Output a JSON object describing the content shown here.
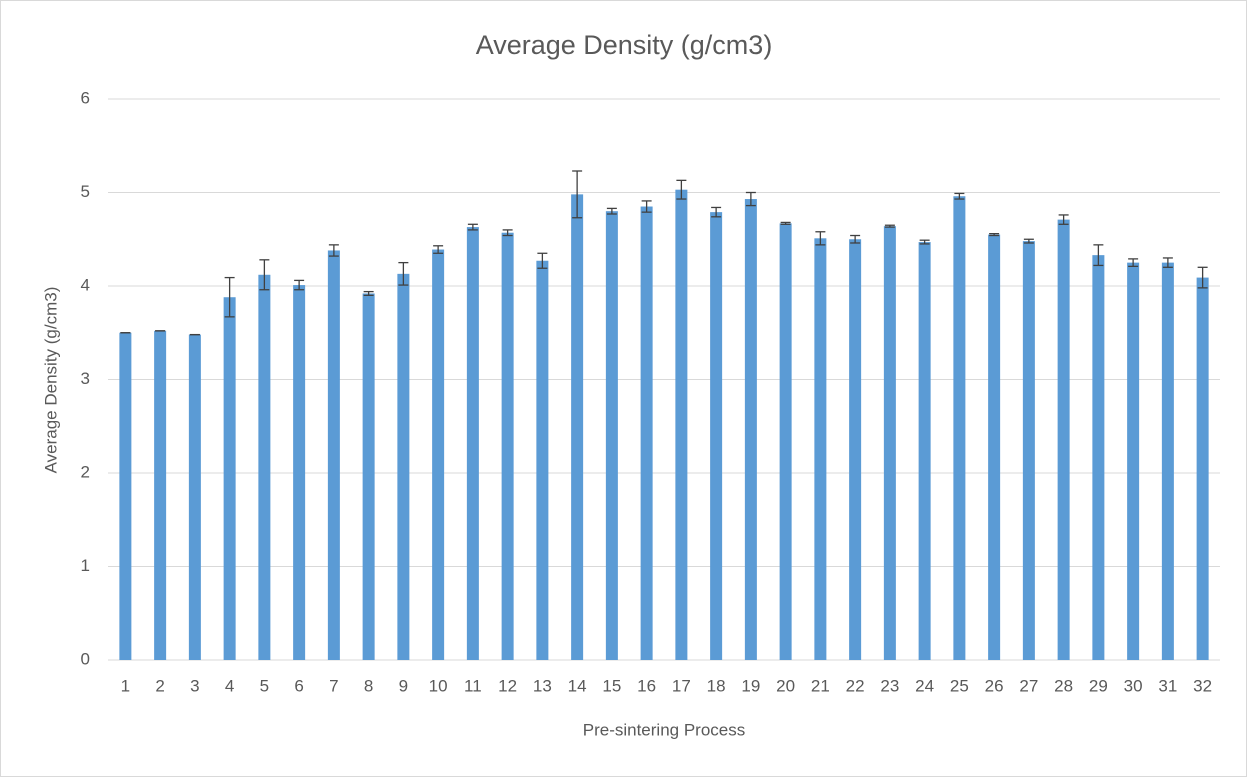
{
  "chart_data": {
    "type": "bar",
    "title": "Average Density (g/cm3)",
    "x_label": "Pre-sintering Process",
    "y_label": "Average Density (g/cm3)",
    "categories": [
      "1",
      "2",
      "3",
      "4",
      "5",
      "6",
      "7",
      "8",
      "9",
      "10",
      "11",
      "12",
      "13",
      "14",
      "15",
      "16",
      "17",
      "18",
      "19",
      "20",
      "21",
      "22",
      "23",
      "24",
      "25",
      "26",
      "27",
      "28",
      "29",
      "30",
      "31",
      "32"
    ],
    "values": [
      3.5,
      3.52,
      3.48,
      3.88,
      4.12,
      4.01,
      4.38,
      3.92,
      4.13,
      4.39,
      4.63,
      4.57,
      4.27,
      4.98,
      4.8,
      4.85,
      5.03,
      4.79,
      4.93,
      4.67,
      4.51,
      4.5,
      4.64,
      4.47,
      4.96,
      4.55,
      4.48,
      4.71,
      4.33,
      4.25,
      4.25,
      4.09
    ],
    "errors": [
      0,
      0,
      0,
      0.21,
      0.16,
      0.05,
      0.06,
      0.02,
      0.12,
      0.04,
      0.03,
      0.03,
      0.08,
      0.25,
      0.03,
      0.06,
      0.1,
      0.05,
      0.07,
      0.01,
      0.07,
      0.04,
      0.01,
      0.02,
      0.03,
      0.01,
      0.02,
      0.05,
      0.11,
      0.04,
      0.05,
      0.11
    ],
    "color": "#5b9bd5",
    "error_color": "#404040",
    "ylim": [
      0,
      6
    ],
    "yticks": [
      0,
      1,
      2,
      3,
      4,
      5,
      6
    ],
    "grid": true
  }
}
